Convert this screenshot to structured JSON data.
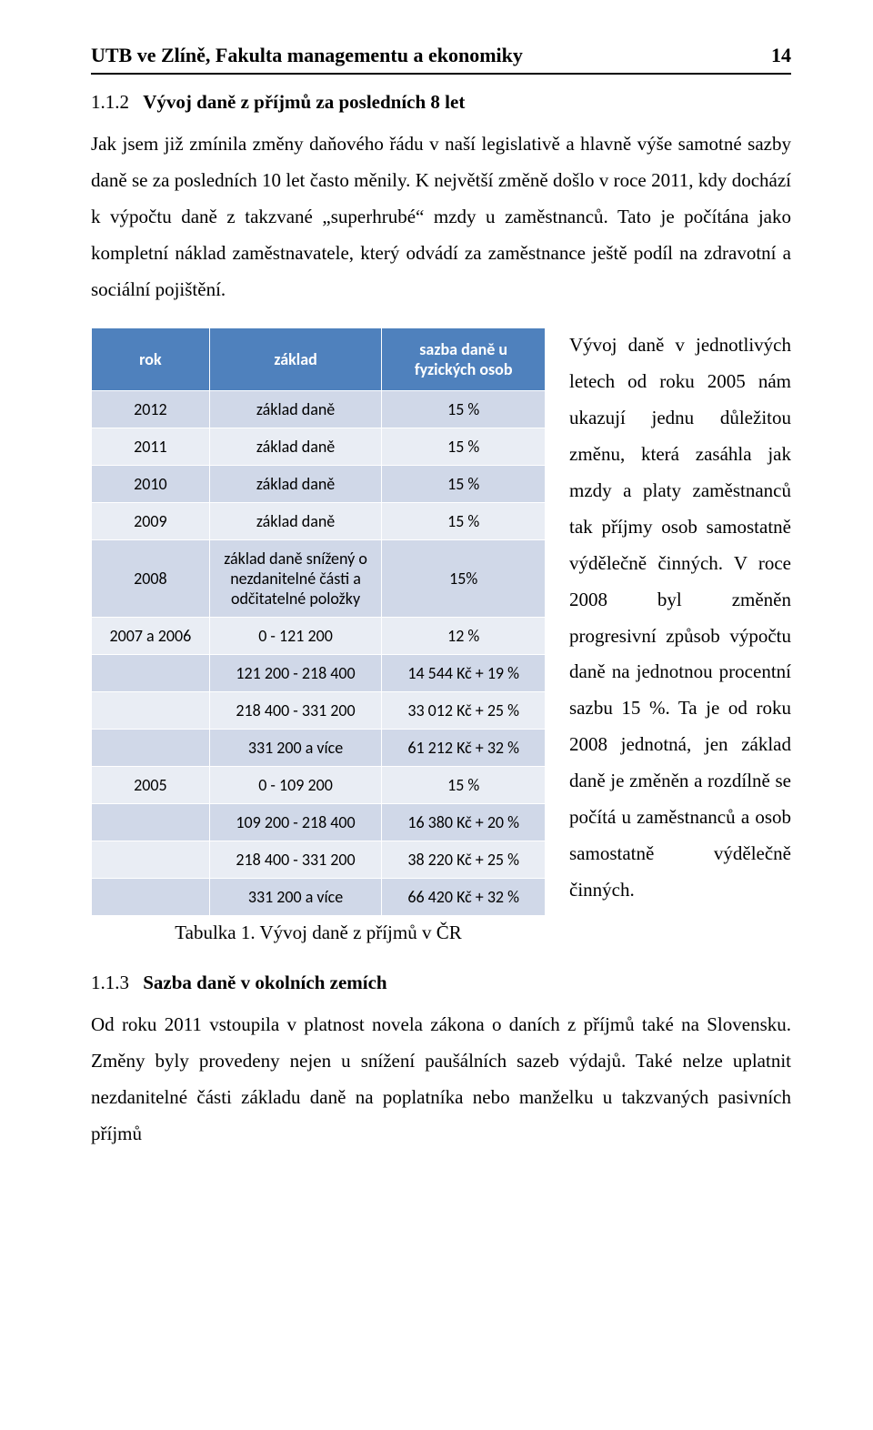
{
  "header": {
    "title": "UTB ve Zlíně, Fakulta managementu a ekonomiky",
    "page": "14"
  },
  "section1": {
    "num": "1.1.2",
    "title": "Vývoj daně z příjmů za posledních 8 let",
    "intro": "Jak jsem již zmínila změny daňového řádu v naší legislativě a hlavně výše samotné sazby daně se za posledních 10 let často měnily. K největší změně došlo v roce 2011, kdy dochází k výpočtu daně z takzvané „superhrubé“ mzdy u zaměstnanců. Tato je počítána jako kompletní náklad zaměstnavatele, který odvádí za zaměstnance ještě podíl na zdravotní a sociální pojištění."
  },
  "table": {
    "head": {
      "c0": "rok",
      "c1": "základ",
      "c2": "sazba daně u fyzických osob"
    },
    "rows": [
      {
        "c0": "2012",
        "c1": "základ daně",
        "c2": "15 %"
      },
      {
        "c0": "2011",
        "c1": "základ daně",
        "c2": "15 %"
      },
      {
        "c0": "2010",
        "c1": "základ daně",
        "c2": "15 %"
      },
      {
        "c0": "2009",
        "c1": "základ daně",
        "c2": "15 %"
      },
      {
        "c0": "2008",
        "c1": "základ daně snížený o nezdanitelné části a odčitatelné položky",
        "c2": "15%"
      },
      {
        "c0": "2007 a 2006",
        "c1": "0 - 121 200",
        "c2": "12 %"
      },
      {
        "c0": "",
        "c1": "121 200 - 218 400",
        "c2": "14 544 Kč + 19 %"
      },
      {
        "c0": "",
        "c1": "218 400 - 331 200",
        "c2": "33 012 Kč + 25 %"
      },
      {
        "c0": "",
        "c1": "331 200 a více",
        "c2": "61 212 Kč + 32 %"
      },
      {
        "c0": "2005",
        "c1": "0 - 109 200",
        "c2": "15 %"
      },
      {
        "c0": "",
        "c1": "109 200 - 218 400",
        "c2": "16 380 Kč + 20 %"
      },
      {
        "c0": "",
        "c1": "218 400 - 331 200",
        "c2": "38 220 Kč + 25 %"
      },
      {
        "c0": "",
        "c1": "331 200 a více",
        "c2": "66 420 Kč + 32 %"
      }
    ],
    "caption": "Tabulka 1. Vývoj daně z příjmů v ČR",
    "colors": {
      "head_bg": "#4f81bd",
      "head_fg": "#ffffff",
      "row_odd_bg": "#d0d8e8",
      "row_even_bg": "#e9edf4",
      "border": "#ffffff"
    }
  },
  "sidepara": {
    "text": "Vývoj daně v jednotlivých letech od roku 2005 nám ukazují jednu důležitou změnu, která zasáhla jak mzdy a platy zaměstnanců tak příjmy osob samostatně výdělečně činných. V roce 2008 byl změněn progresivní způsob výpočtu daně na jednotnou procentní sazbu 15 %. Ta je od roku 2008 jednotná, jen základ daně je změněn a rozdílně se počítá u zaměstnanců a osob samostatně výdělečně činných."
  },
  "section2": {
    "num": "1.1.3",
    "title": "Sazba daně v okolních zemích",
    "text": "Od roku 2011 vstoupila v platnost novela zákona o daních z příjmů také na Slovensku. Změny byly provedeny nejen u snížení paušálních sazeb výdajů. Také nelze uplatnit nezdanitelné části základu daně na poplatníka nebo manželku u takzvaných pasivních příjmů"
  }
}
